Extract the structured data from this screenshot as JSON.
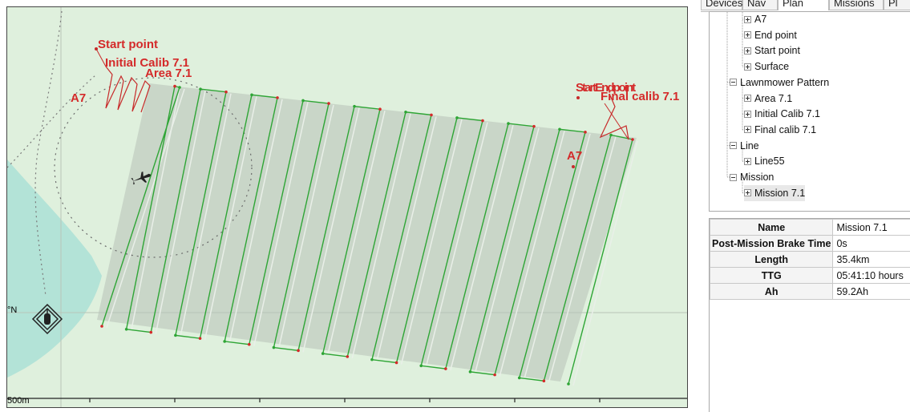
{
  "map": {
    "labels": {
      "start_point": "Start point",
      "initial_calib": "Initial Calib 7.1",
      "area": "Area 7.1",
      "a7_left": "A7",
      "start_end_overlap": "StartEndpoint",
      "final_calib": "Final calib 7.1",
      "a7_right": "A7"
    },
    "scale_label": "500m",
    "lat_label": "°N",
    "colors": {
      "land": "#dff0dd",
      "water": "#b3e3d7",
      "swath": "#c6d1c4",
      "track": "#2ea535",
      "waypoint": "#d42a2a",
      "label": "#d42a2a"
    },
    "icons": [
      "vehicle-icon",
      "ais-target-icon"
    ]
  },
  "panel": {
    "tabs": [
      "Devices",
      "Nav",
      "Plan",
      "Missions",
      "Pl"
    ],
    "active_tab": "Plan",
    "tree": [
      {
        "label": "A7",
        "level": 2,
        "expander": "plus"
      },
      {
        "label": "End point",
        "level": 2,
        "expander": "plus"
      },
      {
        "label": "Start point",
        "level": 2,
        "expander": "plus"
      },
      {
        "label": "Surface",
        "level": 2,
        "expander": "plus"
      },
      {
        "label": "Lawnmower Pattern",
        "level": 1,
        "expander": "minus"
      },
      {
        "label": "Area 7.1",
        "level": 2,
        "expander": "plus"
      },
      {
        "label": "Initial Calib 7.1",
        "level": 2,
        "expander": "plus"
      },
      {
        "label": "Final calib 7.1",
        "level": 2,
        "expander": "plus"
      },
      {
        "label": "Line",
        "level": 1,
        "expander": "minus"
      },
      {
        "label": "Line55",
        "level": 2,
        "expander": "plus"
      },
      {
        "label": "Mission",
        "level": 1,
        "expander": "minus"
      },
      {
        "label": "Mission 7.1",
        "level": 2,
        "expander": "plus",
        "selected": true
      }
    ],
    "properties": [
      {
        "name": "Name",
        "value": "Mission 7.1"
      },
      {
        "name": "Post-Mission Brake Time",
        "value": "0s"
      },
      {
        "name": "Length",
        "value": "35.4km"
      },
      {
        "name": "TTG",
        "value": "05:41:10 hours"
      },
      {
        "name": "Ah",
        "value": "59.2Ah"
      }
    ]
  }
}
